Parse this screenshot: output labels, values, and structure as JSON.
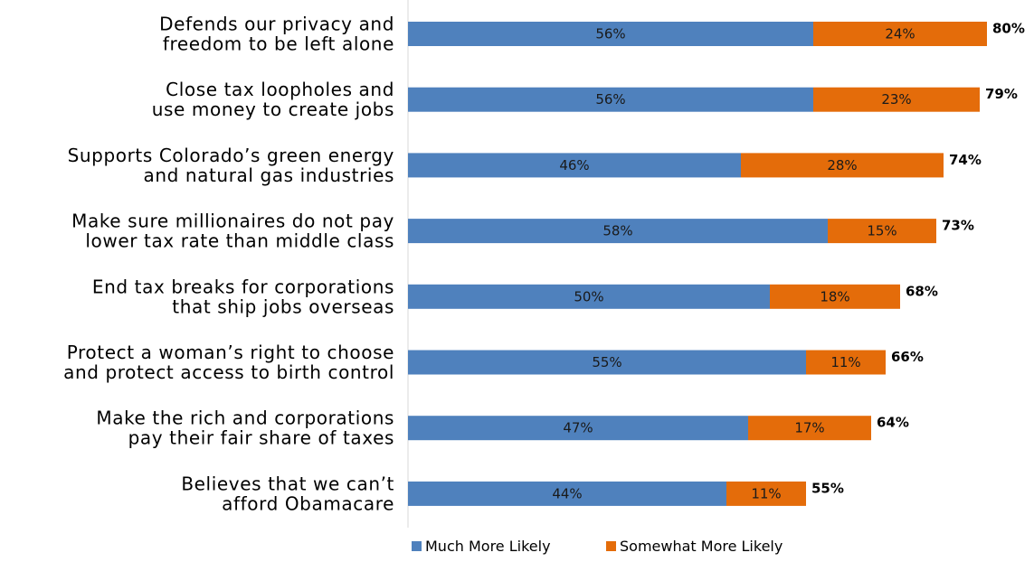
{
  "chart_data": {
    "type": "bar",
    "orientation": "horizontal",
    "stacked": true,
    "categories": [
      [
        "Defends our privacy and",
        "freedom to be left alone"
      ],
      [
        "Close tax loopholes and",
        "use money to create jobs"
      ],
      [
        "Supports Colorado’s green energy",
        "and natural gas industries"
      ],
      [
        "Make sure millionaires do not pay",
        "lower tax rate than middle class"
      ],
      [
        "End tax breaks for corporations",
        "that ship jobs overseas"
      ],
      [
        "Protect a woman’s right to choose",
        "and protect access to birth control"
      ],
      [
        "Make the rich and corporations",
        "pay their fair share of taxes"
      ],
      [
        "Believes that we can’t",
        "afford Obamacare"
      ]
    ],
    "series": [
      {
        "name": "Much More Likely",
        "color": "#4f81bd",
        "values": [
          56,
          56,
          46,
          58,
          50,
          55,
          47,
          44
        ],
        "labels": [
          "56%",
          "56%",
          "46%",
          "58%",
          "50%",
          "55%",
          "47%",
          "44%"
        ]
      },
      {
        "name": "Somewhat More Likely",
        "color": "#e46c0a",
        "values": [
          24,
          23,
          28,
          15,
          18,
          11,
          17,
          11
        ],
        "labels": [
          "24%",
          "23%",
          "28%",
          "15%",
          "18%",
          "11%",
          "17%",
          "11%"
        ]
      }
    ],
    "totals": [
      "80%",
      "79%",
      "74%",
      "73%",
      "68%",
      "66%",
      "64%",
      "55%"
    ],
    "xlim": [
      0,
      80
    ],
    "grid": false,
    "legend": "bottom"
  }
}
